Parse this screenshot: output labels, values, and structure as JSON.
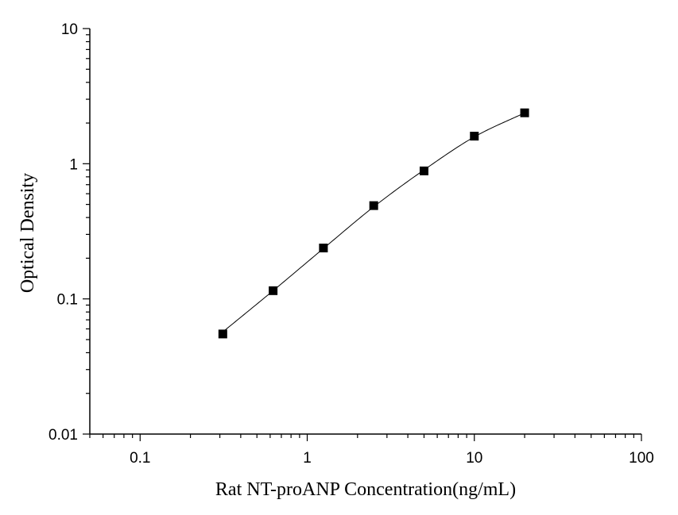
{
  "chart_data": {
    "type": "scatter",
    "xscale": "log",
    "yscale": "log",
    "xlim": [
      0.05,
      100
    ],
    "ylim": [
      0.01,
      10
    ],
    "xlabel": "Rat NT-proANP Concentration(ng/mL)",
    "ylabel": "Optical Density",
    "x_ticks": [
      {
        "value": 0.1,
        "label": "0.1"
      },
      {
        "value": 1,
        "label": "1"
      },
      {
        "value": 10,
        "label": "10"
      },
      {
        "value": 100,
        "label": "100"
      }
    ],
    "y_ticks": [
      {
        "value": 0.01,
        "label": "0.01"
      },
      {
        "value": 0.1,
        "label": "0.1"
      },
      {
        "value": 1,
        "label": "1"
      },
      {
        "value": 10,
        "label": "10"
      }
    ],
    "series": [
      {
        "x": [
          0.3125,
          0.625,
          1.25,
          2.5,
          5,
          10,
          20
        ],
        "y": [
          0.055,
          0.115,
          0.238,
          0.49,
          0.885,
          1.6,
          2.38
        ]
      }
    ],
    "fit_curve": {
      "x": [
        0.3125,
        0.625,
        1.25,
        2.5,
        5,
        10,
        20
      ],
      "y": [
        0.057,
        0.115,
        0.236,
        0.48,
        0.9,
        1.58,
        2.38
      ]
    },
    "grid": false,
    "legend": "none",
    "marker_color": "#000000"
  }
}
